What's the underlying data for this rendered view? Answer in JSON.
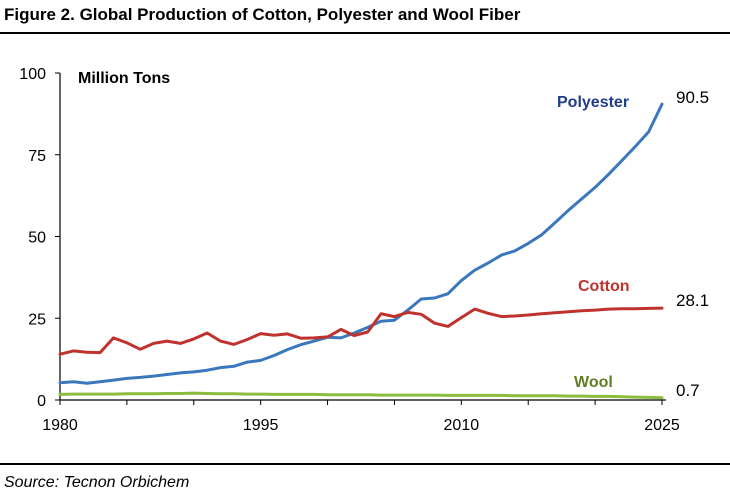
{
  "figure": {
    "title": "Figure 2. Global Production of Cotton, Polyester and Wool Fiber",
    "source": "Source: Tecnon Orbichem"
  },
  "chart_data": {
    "type": "line",
    "title": "Figure 2. Global Production of Cotton, Polyester and Wool Fiber",
    "xlabel": "",
    "ylabel": "Million Tons",
    "xlim": [
      1980,
      2025
    ],
    "ylim": [
      0,
      100
    ],
    "x_ticks": [
      1980,
      1995,
      2010,
      2025
    ],
    "y_ticks": [
      0,
      25,
      50,
      75,
      100
    ],
    "grid": false,
    "legend": "inline labels at line ends",
    "x": [
      1980,
      1981,
      1982,
      1983,
      1984,
      1985,
      1986,
      1987,
      1988,
      1989,
      1990,
      1991,
      1992,
      1993,
      1994,
      1995,
      1996,
      1997,
      1998,
      1999,
      2000,
      2001,
      2002,
      2003,
      2004,
      2005,
      2006,
      2007,
      2008,
      2009,
      2010,
      2011,
      2012,
      2013,
      2014,
      2015,
      2016,
      2017,
      2018,
      2019,
      2020,
      2021,
      2022,
      2023,
      2024,
      2025
    ],
    "series": [
      {
        "name": "Polyester",
        "color": "#3a77bd",
        "label_color": "#1f3d8a",
        "end_label": "90.5",
        "values": [
          5.3,
          5.6,
          5.1,
          5.6,
          6.1,
          6.6,
          6.9,
          7.3,
          7.8,
          8.3,
          8.6,
          9.1,
          9.9,
          10.3,
          11.6,
          12.1,
          13.6,
          15.4,
          16.9,
          18.0,
          19.2,
          19.0,
          20.5,
          22.2,
          24.1,
          24.4,
          27.5,
          30.9,
          31.2,
          32.5,
          36.5,
          39.7,
          41.9,
          44.3,
          45.6,
          47.9,
          50.5,
          54.2,
          58.0,
          61.5,
          65.0,
          69.0,
          73.2,
          77.5,
          82.0,
          90.5
        ]
      },
      {
        "name": "Cotton",
        "color": "#c0322d",
        "label_color": "#c0322d",
        "end_label": "28.1",
        "values": [
          14.0,
          15.0,
          14.6,
          14.5,
          19.0,
          17.5,
          15.5,
          17.3,
          18.0,
          17.3,
          18.7,
          20.5,
          18.0,
          17.0,
          18.5,
          20.3,
          19.8,
          20.2,
          18.9,
          19.0,
          19.3,
          21.6,
          19.7,
          20.8,
          26.4,
          25.5,
          26.8,
          26.2,
          23.5,
          22.5,
          25.2,
          27.8,
          26.5,
          25.5,
          25.7,
          26.0,
          26.4,
          26.7,
          27.0,
          27.3,
          27.5,
          27.8,
          27.9,
          27.9,
          28.0,
          28.1
        ]
      },
      {
        "name": "Wool",
        "color": "#8cbb3d",
        "label_color": "#5f7f20",
        "end_label": "0.7",
        "values": [
          1.7,
          1.8,
          1.8,
          1.8,
          1.8,
          1.9,
          1.9,
          1.9,
          2.0,
          2.0,
          2.1,
          2.0,
          1.9,
          1.9,
          1.8,
          1.8,
          1.7,
          1.7,
          1.7,
          1.7,
          1.6,
          1.6,
          1.6,
          1.6,
          1.5,
          1.5,
          1.5,
          1.5,
          1.5,
          1.4,
          1.4,
          1.4,
          1.4,
          1.4,
          1.3,
          1.3,
          1.3,
          1.3,
          1.2,
          1.2,
          1.1,
          1.1,
          1.0,
          0.9,
          0.8,
          0.7
        ]
      }
    ]
  }
}
